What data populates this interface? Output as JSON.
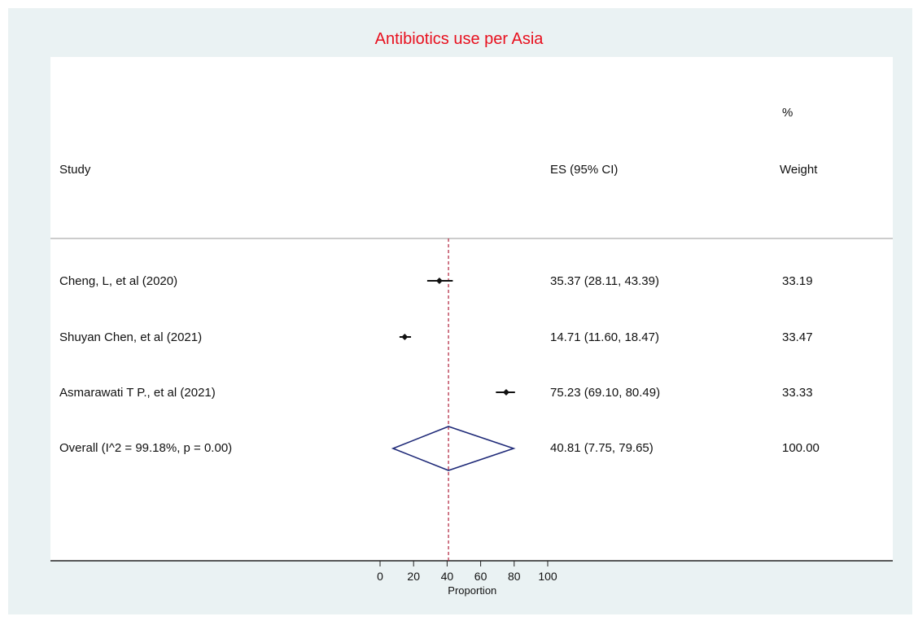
{
  "chart_data": {
    "type": "forest",
    "title": "Antibiotics use per Asia",
    "xlabel": "Proportion",
    "xlim": [
      0,
      100
    ],
    "x_ticks": [
      0,
      20,
      40,
      60,
      80,
      100
    ],
    "reference_line": 40.81,
    "headers": {
      "study": "Study",
      "es": "ES (95% CI)",
      "weight_top": "%",
      "weight": "Weight"
    },
    "studies": [
      {
        "label": "Cheng, L, et al (2020)",
        "es": 35.37,
        "lower": 28.11,
        "upper": 43.39,
        "es_text": "35.37 (28.11, 43.39)",
        "weight": "33.19"
      },
      {
        "label": "Shuyan Chen, et al (2021)",
        "es": 14.71,
        "lower": 11.6,
        "upper": 18.47,
        "es_text": "14.71 (11.60, 18.47)",
        "weight": "33.47"
      },
      {
        "label": "Asmarawati T P., et al (2021)",
        "es": 75.23,
        "lower": 69.1,
        "upper": 80.49,
        "es_text": "75.23 (69.10, 80.49)",
        "weight": "33.33"
      }
    ],
    "overall": {
      "label": "Overall  (I^2 = 99.18%, p = 0.00)",
      "es": 40.81,
      "lower": 7.75,
      "upper": 79.65,
      "es_text": "40.81 (7.75, 79.65)",
      "weight": "100.00"
    },
    "colors": {
      "title": "#e8101e",
      "diamond": "#1f2a78",
      "reference_line": "#b0203a",
      "marker": "#111111",
      "background": "#eaf2f3"
    }
  }
}
